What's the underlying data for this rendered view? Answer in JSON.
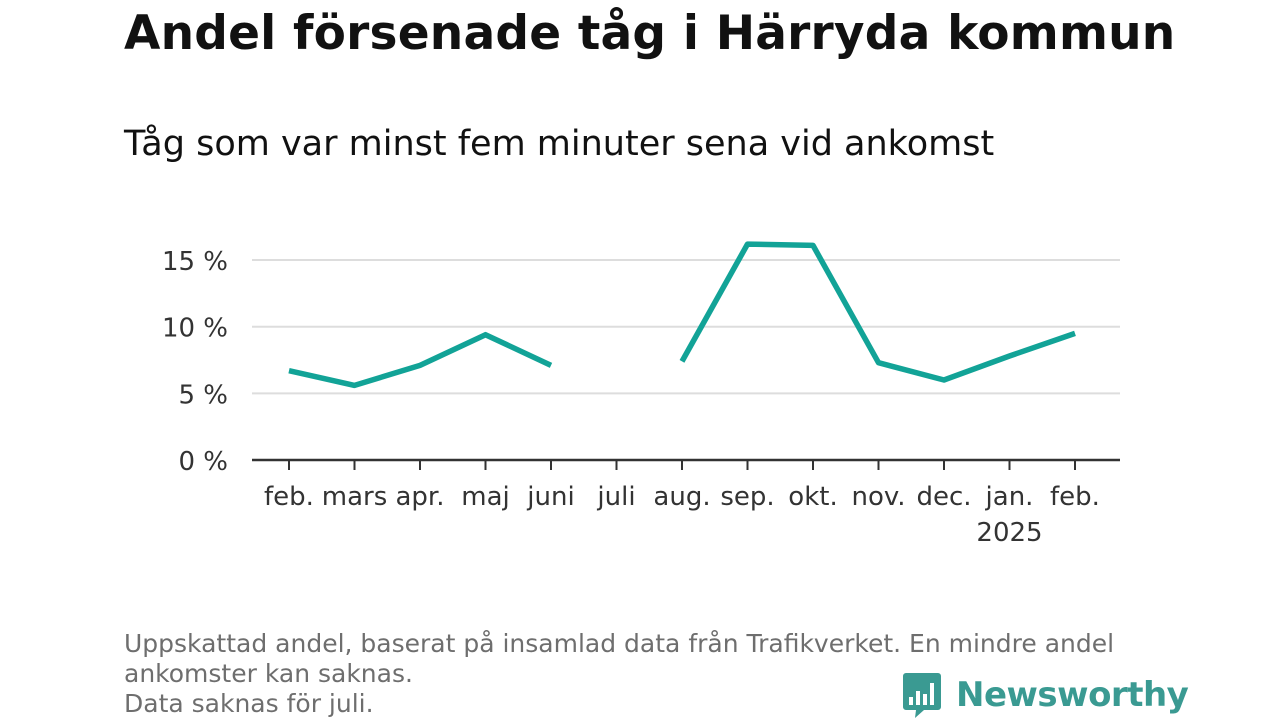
{
  "title": "Andel försenade tåg i Härryda kommun",
  "subtitle": "Tåg som var minst fem minuter sena vid ankomst",
  "footnote": {
    "line1": "Uppskattad andel, baserat på insamlad data från Trafikverket. En mindre andel",
    "line2": "ankomster kan saknas.",
    "line3": "Data saknas för juli."
  },
  "brand": {
    "name": "Newsworthy",
    "color": "#3a9a92"
  },
  "chart_data": {
    "type": "line",
    "title": "Andel försenade tåg i Härryda kommun",
    "subtitle": "Tåg som var minst fem minuter sena vid ankomst",
    "xlabel": "",
    "ylabel": "",
    "categories": [
      "feb.",
      "mars",
      "apr.",
      "maj",
      "juni",
      "juli",
      "aug.",
      "sep.",
      "okt.",
      "nov.",
      "dec.",
      "jan.",
      "feb."
    ],
    "category_sublabels": [
      "",
      "",
      "",
      "",
      "",
      "",
      "",
      "",
      "",
      "",
      "",
      "2025",
      ""
    ],
    "series": [
      {
        "values": [
          6.7,
          5.6,
          7.1,
          9.4,
          7.1,
          null,
          7.4,
          16.2,
          16.1,
          7.3,
          6.0,
          7.8,
          9.5
        ],
        "color": "#12a397"
      }
    ],
    "ylim": [
      0,
      17
    ],
    "yticks": [
      0,
      5,
      10,
      15
    ],
    "ytick_labels": [
      "0 %",
      "5 %",
      "10 %",
      "15 %"
    ],
    "grid": true,
    "legend": "none"
  }
}
